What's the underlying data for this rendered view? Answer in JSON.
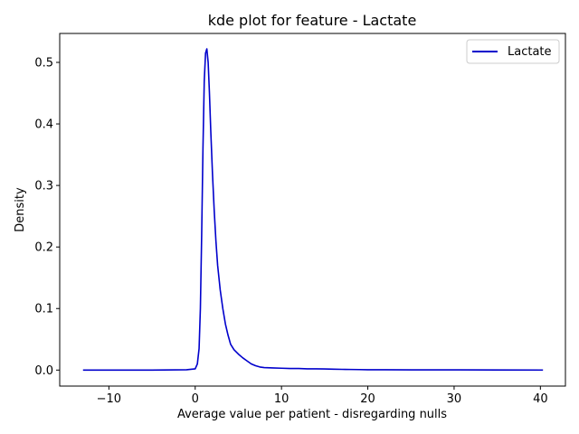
{
  "chart_data": {
    "type": "line",
    "title": "kde plot for feature -  Lactate",
    "xlabel": "Average value per patient - disregarding nulls",
    "ylabel": "Density",
    "xlim": [
      -15.7,
      42.9
    ],
    "ylim": [
      -0.026,
      0.547
    ],
    "xticks": [
      -10,
      0,
      10,
      20,
      30,
      40
    ],
    "xtick_labels": [
      "−10",
      "0",
      "10",
      "20",
      "30",
      "40"
    ],
    "yticks": [
      0.0,
      0.1,
      0.2,
      0.3,
      0.4,
      0.5
    ],
    "ytick_labels": [
      "0.0",
      "0.1",
      "0.2",
      "0.3",
      "0.4",
      "0.5"
    ],
    "grid": false,
    "legend_position": "top-right",
    "series": [
      {
        "name": "Lactate",
        "color": "#0000cc",
        "x": [
          -13.0,
          -5.0,
          -1.0,
          0.0,
          0.25,
          0.45,
          0.6,
          0.75,
          0.9,
          1.05,
          1.2,
          1.35,
          1.5,
          1.65,
          1.8,
          2.0,
          2.2,
          2.4,
          2.6,
          2.9,
          3.2,
          3.5,
          3.8,
          4.1,
          4.5,
          5.0,
          5.5,
          6.0,
          6.5,
          7.0,
          7.5,
          8.0,
          9.0,
          10.0,
          11.0,
          12.0,
          13.0,
          14.0,
          15.0,
          16.0,
          17.0,
          18.0,
          19.0,
          20.0,
          22.0,
          25.0,
          30.0,
          35.0,
          40.3
        ],
        "y": [
          0.0,
          0.0,
          0.0005,
          0.002,
          0.01,
          0.035,
          0.1,
          0.22,
          0.36,
          0.47,
          0.515,
          0.522,
          0.5,
          0.45,
          0.39,
          0.32,
          0.26,
          0.21,
          0.17,
          0.13,
          0.1,
          0.075,
          0.057,
          0.042,
          0.033,
          0.026,
          0.02,
          0.015,
          0.01,
          0.007,
          0.005,
          0.004,
          0.0035,
          0.003,
          0.0025,
          0.0025,
          0.002,
          0.002,
          0.0018,
          0.0015,
          0.0012,
          0.001,
          0.0008,
          0.0006,
          0.0005,
          0.0004,
          0.0003,
          0.0002,
          0.0001
        ]
      }
    ]
  }
}
